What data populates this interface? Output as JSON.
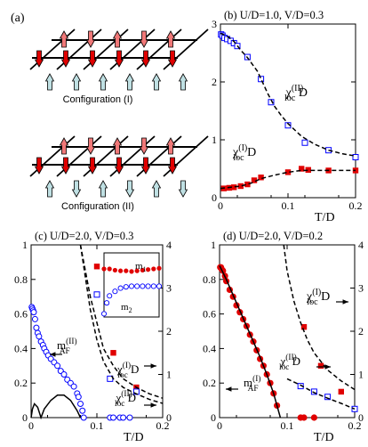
{
  "panel_a": {
    "label": "(a)",
    "config1": "Configuration (I)",
    "config2": "Configuration (II)"
  },
  "colors": {
    "red": "#e00000",
    "pink": "#f07878",
    "lightblue": "#bfe0e3",
    "blue": "#0000ff"
  },
  "chart_data": [
    {
      "id": "b",
      "type": "scatter",
      "title": "(b) U/D=1.0, V/D=0.3",
      "xlabel": "T/D",
      "xlim": [
        0,
        0.2
      ],
      "ylim": [
        0,
        3
      ],
      "xticks": [
        "0",
        "0.1",
        "0.2"
      ],
      "yticks": [
        "0",
        "1",
        "2",
        "3"
      ],
      "labels": [
        {
          "text": "χloc(II) D",
          "main": "χ",
          "sub": "loc",
          "sup": "(II)",
          "suffix": " D"
        },
        {
          "text": "χloc(I) D",
          "main": "χ",
          "sub": "loc",
          "sup": "(I)",
          "suffix": " D"
        }
      ],
      "series": [
        {
          "marker": "open-square",
          "axis": "left",
          "points": [
            [
              0.001,
              2.82
            ],
            [
              0.003,
              2.8
            ],
            [
              0.006,
              2.76
            ],
            [
              0.01,
              2.74
            ],
            [
              0.015,
              2.71
            ],
            [
              0.02,
              2.67
            ],
            [
              0.025,
              2.62
            ],
            [
              0.04,
              2.43
            ],
            [
              0.06,
              2.05
            ],
            [
              0.075,
              1.65
            ],
            [
              0.1,
              1.25
            ],
            [
              0.125,
              0.95
            ],
            [
              0.16,
              0.82
            ],
            [
              0.2,
              0.7
            ]
          ]
        },
        {
          "marker": "filled-square",
          "axis": "left",
          "points": [
            [
              0.005,
              0.16
            ],
            [
              0.013,
              0.17
            ],
            [
              0.02,
              0.18
            ],
            [
              0.03,
              0.2
            ],
            [
              0.04,
              0.23
            ],
            [
              0.05,
              0.3
            ],
            [
              0.06,
              0.35
            ],
            [
              0.1,
              0.44
            ],
            [
              0.12,
              0.5
            ],
            [
              0.13,
              0.48
            ],
            [
              0.16,
              0.47
            ],
            [
              0.2,
              0.47
            ]
          ]
        },
        {
          "line": "dashed",
          "axis": "left",
          "points": [
            [
              0,
              2.84
            ],
            [
              0.01,
              2.79
            ],
            [
              0.02,
              2.7
            ],
            [
              0.03,
              2.55
            ],
            [
              0.04,
              2.42
            ],
            [
              0.055,
              2.18
            ],
            [
              0.07,
              1.8
            ],
            [
              0.08,
              1.58
            ],
            [
              0.09,
              1.42
            ],
            [
              0.1,
              1.28
            ],
            [
              0.12,
              1.06
            ],
            [
              0.14,
              0.92
            ],
            [
              0.16,
              0.82
            ],
            [
              0.18,
              0.76
            ],
            [
              0.2,
              0.72
            ]
          ]
        },
        {
          "line": "dashed",
          "axis": "left",
          "points": [
            [
              0,
              0.16
            ],
            [
              0.03,
              0.2
            ],
            [
              0.045,
              0.25
            ],
            [
              0.06,
              0.33
            ],
            [
              0.08,
              0.39
            ],
            [
              0.1,
              0.44
            ],
            [
              0.12,
              0.47
            ],
            [
              0.15,
              0.47
            ],
            [
              0.2,
              0.47
            ]
          ]
        }
      ]
    },
    {
      "id": "c",
      "type": "scatter",
      "title": "(c) U/D=2.0, V/D=0.3",
      "xlabel": "T/D",
      "xlim": [
        0,
        0.2
      ],
      "ylim": [
        0,
        1
      ],
      "y2lim": [
        0,
        4
      ],
      "xticks": [
        "0",
        "0.1",
        "0.2"
      ],
      "yticks": [
        "0",
        "0.2",
        "0.4",
        "0.6",
        "0.8",
        "1"
      ],
      "y2ticks": [
        "0",
        "1",
        "2",
        "3",
        "4"
      ],
      "labels": [
        {
          "text": "mAF(II)",
          "main": "m",
          "sub": "AF",
          "sup": "(II)",
          "suffix": ""
        },
        {
          "text": "χloc(I) D",
          "main": "χ",
          "sub": "loc",
          "sup": "(I)",
          "suffix": " D"
        },
        {
          "text": "χloc(II) D",
          "main": "χ",
          "sub": "loc",
          "sup": "(II)",
          "suffix": " D"
        }
      ],
      "inset": {
        "labels": [
          "m1",
          "m2"
        ],
        "xlim": [
          0,
          0.1
        ],
        "ylim": [
          0,
          1
        ],
        "m1": [
          [
            0,
            0.75
          ],
          [
            0.01,
            0.75
          ],
          [
            0.02,
            0.73
          ],
          [
            0.03,
            0.72
          ],
          [
            0.04,
            0.72
          ],
          [
            0.05,
            0.71
          ],
          [
            0.06,
            0.72
          ],
          [
            0.07,
            0.73
          ],
          [
            0.08,
            0.74
          ],
          [
            0.09,
            0.75
          ],
          [
            0.1,
            0.76
          ]
        ],
        "m2": [
          [
            0,
            0.05
          ],
          [
            0.005,
            0.22
          ],
          [
            0.01,
            0.33
          ],
          [
            0.02,
            0.4
          ],
          [
            0.03,
            0.45
          ],
          [
            0.04,
            0.47
          ],
          [
            0.05,
            0.48
          ],
          [
            0.06,
            0.48
          ],
          [
            0.07,
            0.48
          ],
          [
            0.08,
            0.48
          ],
          [
            0.09,
            0.48
          ],
          [
            0.1,
            0.48
          ]
        ]
      },
      "series": [
        {
          "marker": "open-circle",
          "axis": "left",
          "points": [
            [
              0.001,
              0.64
            ],
            [
              0.002,
              0.63
            ],
            [
              0.003,
              0.62
            ],
            [
              0.004,
              0.61
            ],
            [
              0.006,
              0.57
            ],
            [
              0.008,
              0.52
            ],
            [
              0.01,
              0.49
            ],
            [
              0.012,
              0.47
            ],
            [
              0.015,
              0.44
            ],
            [
              0.018,
              0.42
            ],
            [
              0.02,
              0.4
            ],
            [
              0.023,
              0.38
            ],
            [
              0.026,
              0.36
            ],
            [
              0.03,
              0.34
            ],
            [
              0.035,
              0.32
            ],
            [
              0.04,
              0.3
            ],
            [
              0.045,
              0.27
            ],
            [
              0.05,
              0.25
            ],
            [
              0.055,
              0.22
            ],
            [
              0.06,
              0.2
            ],
            [
              0.065,
              0.18
            ],
            [
              0.07,
              0.14
            ],
            [
              0.072,
              0.12
            ],
            [
              0.075,
              0.08
            ],
            [
              0.078,
              0.04
            ],
            [
              0.08,
              0
            ],
            [
              0.12,
              0
            ],
            [
              0.125,
              0
            ],
            [
              0.135,
              0
            ],
            [
              0.14,
              0
            ],
            [
              0.15,
              0
            ]
          ]
        },
        {
          "line": "solid",
          "axis": "left",
          "points": [
            [
              0,
              0
            ],
            [
              0.002,
              0.05
            ],
            [
              0.005,
              0.08
            ],
            [
              0.01,
              0.06
            ],
            [
              0.015,
              0
            ],
            [
              0.02,
              0.05
            ],
            [
              0.03,
              0.1
            ],
            [
              0.04,
              0.13
            ],
            [
              0.05,
              0.13
            ],
            [
              0.06,
              0.1
            ],
            [
              0.07,
              0.04
            ],
            [
              0.075,
              0
            ]
          ]
        },
        {
          "marker": "filled-square",
          "axis": "right",
          "points": [
            [
              0.1,
              3.5
            ],
            [
              0.125,
              1.5
            ],
            [
              0.16,
              0.7
            ]
          ]
        },
        {
          "marker": "open-square",
          "axis": "right",
          "points": [
            [
              0.1,
              2.85
            ],
            [
              0.12,
              0.9
            ],
            [
              0.16,
              0.6
            ]
          ]
        },
        {
          "line": "dashed",
          "axis": "right",
          "points": [
            [
              0.075,
              4
            ],
            [
              0.08,
              3.6
            ],
            [
              0.085,
              3.2
            ],
            [
              0.09,
              2.8
            ],
            [
              0.1,
              2.2
            ],
            [
              0.11,
              1.6
            ],
            [
              0.125,
              1.2
            ],
            [
              0.14,
              0.9
            ],
            [
              0.16,
              0.7
            ],
            [
              0.18,
              0.55
            ],
            [
              0.2,
              0.45
            ]
          ]
        },
        {
          "line": "dashed",
          "axis": "right",
          "points": [
            [
              0.075,
              4
            ],
            [
              0.08,
              3.5
            ],
            [
              0.085,
              3
            ],
            [
              0.09,
              2.5
            ],
            [
              0.1,
              1.8
            ],
            [
              0.11,
              1.3
            ],
            [
              0.125,
              0.9
            ],
            [
              0.14,
              0.7
            ],
            [
              0.16,
              0.55
            ],
            [
              0.18,
              0.42
            ],
            [
              0.2,
              0.33
            ]
          ]
        }
      ]
    },
    {
      "id": "d",
      "type": "scatter",
      "title": "(d) U/D=2.0, V/D=0.2",
      "xlabel": "T/D",
      "xlim": [
        0,
        0.2
      ],
      "ylim": [
        0,
        1
      ],
      "y2lim": [
        0,
        4
      ],
      "xticks": [
        "0",
        "0.1",
        "0.2"
      ],
      "yticks": [
        "0",
        "0.2",
        "0.4",
        "0.6",
        "0.8",
        "1"
      ],
      "y2ticks": [
        "0",
        "1",
        "2",
        "3",
        "4"
      ],
      "labels": [
        {
          "text": "χloc(I) D",
          "main": "χ",
          "sub": "loc",
          "sup": "(I)",
          "suffix": " D"
        },
        {
          "text": "χloc(II) D",
          "main": "χ",
          "sub": "loc",
          "sup": "(II)",
          "suffix": " D"
        },
        {
          "text": "mAF(I)",
          "main": "m",
          "sub": "AF",
          "sup": "(I)",
          "suffix": ""
        }
      ],
      "series": [
        {
          "marker": "filled-circle",
          "axis": "left",
          "points": [
            [
              0.001,
              0.87
            ],
            [
              0.002,
              0.87
            ],
            [
              0.003,
              0.86
            ],
            [
              0.005,
              0.85
            ],
            [
              0.008,
              0.82
            ],
            [
              0.01,
              0.79
            ],
            [
              0.015,
              0.74
            ],
            [
              0.02,
              0.7
            ],
            [
              0.025,
              0.65
            ],
            [
              0.03,
              0.61
            ],
            [
              0.035,
              0.57
            ],
            [
              0.04,
              0.53
            ],
            [
              0.045,
              0.48
            ],
            [
              0.05,
              0.44
            ],
            [
              0.055,
              0.39
            ],
            [
              0.06,
              0.34
            ],
            [
              0.065,
              0.3
            ],
            [
              0.07,
              0.25
            ],
            [
              0.075,
              0.2
            ],
            [
              0.08,
              0.14
            ],
            [
              0.085,
              0.07
            ],
            [
              0.12,
              0
            ],
            [
              0.125,
              0
            ],
            [
              0.14,
              0
            ]
          ]
        },
        {
          "line": "solid",
          "axis": "left",
          "points": [
            [
              0,
              0.88
            ],
            [
              0.01,
              0.8
            ],
            [
              0.02,
              0.71
            ],
            [
              0.03,
              0.62
            ],
            [
              0.04,
              0.53
            ],
            [
              0.05,
              0.44
            ],
            [
              0.06,
              0.35
            ],
            [
              0.07,
              0.25
            ],
            [
              0.08,
              0.14
            ],
            [
              0.085,
              0.07
            ],
            [
              0.09,
              0
            ]
          ]
        },
        {
          "marker": "filled-square",
          "axis": "right",
          "points": [
            [
              0.125,
              2.1
            ],
            [
              0.15,
              1.2
            ],
            [
              0.18,
              0.6
            ]
          ]
        },
        {
          "marker": "open-square",
          "axis": "right",
          "points": [
            [
              0.12,
              0.73
            ],
            [
              0.14,
              0.6
            ],
            [
              0.16,
              0.48
            ],
            [
              0.2,
              0.2
            ]
          ]
        },
        {
          "line": "dashed",
          "axis": "right",
          "points": [
            [
              0.095,
              4
            ],
            [
              0.1,
              3.4
            ],
            [
              0.11,
              2.7
            ],
            [
              0.12,
              2.2
            ],
            [
              0.13,
              1.8
            ],
            [
              0.14,
              1.5
            ],
            [
              0.16,
              1.1
            ],
            [
              0.18,
              0.85
            ],
            [
              0.2,
              0.65
            ]
          ]
        },
        {
          "line": "dashed",
          "axis": "right",
          "points": [
            [
              0.1,
              0.9
            ],
            [
              0.12,
              0.75
            ],
            [
              0.14,
              0.58
            ],
            [
              0.16,
              0.45
            ],
            [
              0.18,
              0.33
            ],
            [
              0.2,
              0.2
            ]
          ]
        }
      ]
    }
  ]
}
